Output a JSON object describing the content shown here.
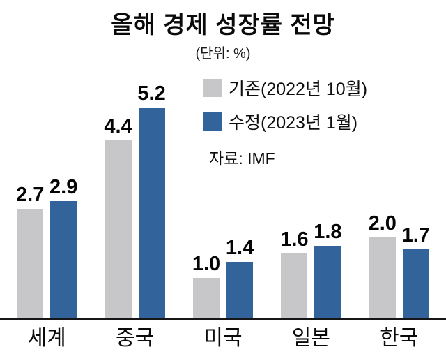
{
  "chart_data": {
    "type": "bar",
    "title": "올해 경제 성장률 전망",
    "subtitle": "(단위: %)",
    "source": "자료: IMF",
    "categories": [
      "세계",
      "중국",
      "미국",
      "일본",
      "한국"
    ],
    "series": [
      {
        "name": "기존(2022년 10월)",
        "color": "#c7c7c9",
        "values": [
          2.7,
          4.4,
          1.0,
          1.6,
          2.0
        ]
      },
      {
        "name": "수정(2023년 1월)",
        "color": "#33639b",
        "values": [
          2.9,
          5.2,
          1.4,
          1.8,
          1.7
        ]
      }
    ],
    "ylim": [
      0,
      5.5
    ],
    "grid": false,
    "legend_position": "top-right",
    "value_label_format": "0.1f"
  }
}
